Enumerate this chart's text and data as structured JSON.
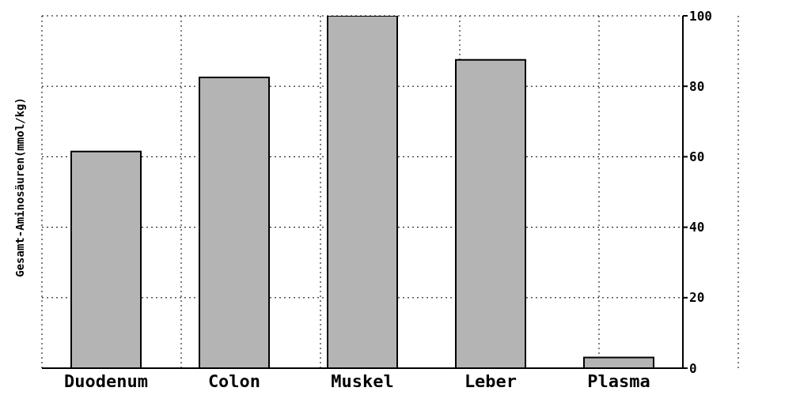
{
  "chart_data": {
    "type": "bar",
    "ylabel": "Gesamt-Aminosäuren(mmol/kg)",
    "categories": [
      "Duodenum",
      "Colon",
      "Muskel",
      "Leber",
      "Plasma"
    ],
    "values": [
      61.5,
      82.5,
      100,
      87.5,
      3
    ],
    "color": "#b4b4b4",
    "ylim": [
      0,
      100
    ],
    "yticks": [
      0,
      20,
      40,
      60,
      80,
      100
    ],
    "grid": true
  }
}
